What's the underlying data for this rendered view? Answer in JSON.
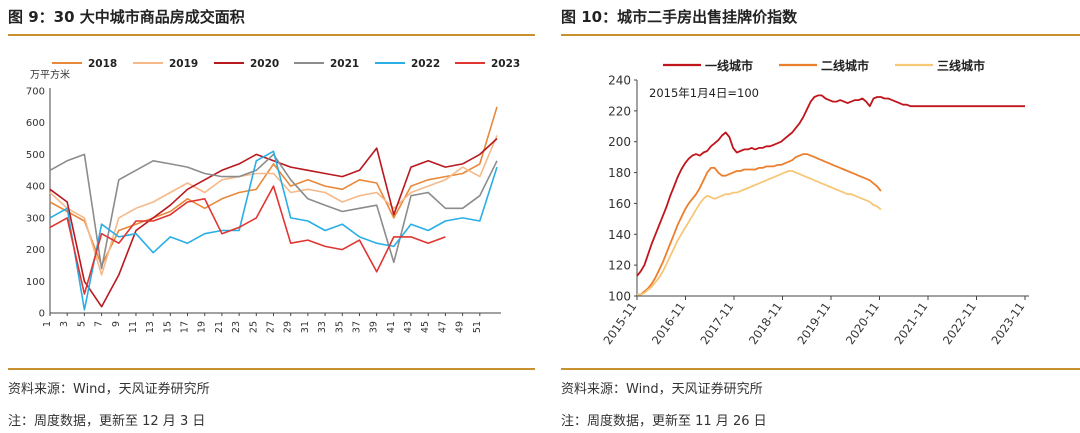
{
  "left": {
    "title": "图 9：30 大中城市商品房成交面积",
    "source": "资料来源：Wind，天风证券研究所",
    "note": "注：周度数据，更新至 12 月 3 日"
  },
  "right": {
    "title": "图 10：城市二手房出售挂牌价指数",
    "source": "资料来源：Wind，天风证券研究所",
    "note": "注：周度数据，更新至 11 月 26 日"
  },
  "chart_data": [
    {
      "type": "line",
      "ylabel": "万平方米",
      "ylim": [
        0,
        700
      ],
      "yticks": [
        0,
        100,
        200,
        300,
        400,
        500,
        600,
        700
      ],
      "xlim": [
        1,
        53
      ],
      "xticks": [
        1,
        3,
        5,
        7,
        9,
        11,
        13,
        15,
        17,
        19,
        21,
        23,
        25,
        27,
        29,
        31,
        33,
        35,
        37,
        39,
        41,
        43,
        45,
        47,
        49,
        51
      ],
      "legend_position": "top",
      "series": [
        {
          "name": "2018",
          "color": "#e8893a",
          "x": [
            1,
            3,
            5,
            7,
            9,
            11,
            13,
            15,
            17,
            19,
            21,
            23,
            25,
            27,
            29,
            31,
            33,
            35,
            37,
            39,
            41,
            43,
            45,
            47,
            49,
            51,
            53
          ],
          "values": [
            350,
            320,
            290,
            150,
            260,
            280,
            300,
            320,
            360,
            330,
            360,
            380,
            390,
            470,
            400,
            420,
            400,
            390,
            420,
            410,
            300,
            400,
            420,
            430,
            440,
            470,
            650
          ]
        },
        {
          "name": "2019",
          "color": "#f5b98a",
          "x": [
            1,
            3,
            5,
            7,
            9,
            11,
            13,
            15,
            17,
            19,
            21,
            23,
            25,
            27,
            29,
            31,
            33,
            35,
            37,
            39,
            41,
            43,
            45,
            47,
            49,
            51,
            53
          ],
          "values": [
            380,
            330,
            300,
            120,
            300,
            330,
            350,
            380,
            410,
            380,
            420,
            430,
            440,
            440,
            380,
            390,
            380,
            350,
            370,
            380,
            330,
            380,
            400,
            420,
            460,
            430,
            560
          ]
        },
        {
          "name": "2020",
          "color": "#b8181e",
          "x": [
            1,
            3,
            5,
            7,
            9,
            11,
            13,
            15,
            17,
            19,
            21,
            23,
            25,
            27,
            29,
            31,
            33,
            35,
            37,
            39,
            41,
            43,
            45,
            47,
            49,
            51,
            53
          ],
          "values": [
            390,
            350,
            100,
            20,
            120,
            260,
            300,
            340,
            390,
            420,
            450,
            470,
            500,
            480,
            460,
            450,
            440,
            430,
            450,
            520,
            310,
            460,
            480,
            460,
            470,
            500,
            550
          ]
        },
        {
          "name": "2021",
          "color": "#8c8c8c",
          "x": [
            1,
            3,
            5,
            7,
            9,
            11,
            13,
            15,
            17,
            19,
            21,
            23,
            25,
            27,
            29,
            31,
            33,
            35,
            37,
            39,
            41,
            43,
            45,
            47,
            49,
            51,
            53
          ],
          "values": [
            450,
            480,
            500,
            140,
            420,
            450,
            480,
            470,
            460,
            440,
            430,
            430,
            450,
            500,
            420,
            360,
            340,
            320,
            330,
            340,
            160,
            370,
            380,
            330,
            330,
            370,
            480
          ]
        },
        {
          "name": "2022",
          "color": "#2aaee6",
          "x": [
            1,
            3,
            5,
            7,
            9,
            11,
            13,
            15,
            17,
            19,
            21,
            23,
            25,
            27,
            29,
            31,
            33,
            35,
            37,
            39,
            41,
            43,
            45,
            47,
            49,
            51,
            53
          ],
          "values": [
            300,
            330,
            10,
            280,
            240,
            250,
            190,
            240,
            220,
            250,
            260,
            260,
            480,
            510,
            300,
            290,
            260,
            280,
            240,
            220,
            210,
            280,
            260,
            290,
            300,
            290,
            460
          ]
        },
        {
          "name": "2023",
          "color": "#e03531",
          "x": [
            1,
            3,
            5,
            7,
            9,
            11,
            13,
            15,
            17,
            19,
            21,
            23,
            25,
            27,
            29,
            31,
            33,
            35,
            37,
            39,
            41,
            43,
            45,
            47
          ],
          "values": [
            270,
            300,
            60,
            250,
            220,
            290,
            290,
            310,
            350,
            360,
            250,
            270,
            300,
            400,
            220,
            230,
            210,
            200,
            230,
            130,
            240,
            240,
            220,
            240
          ]
        }
      ]
    },
    {
      "type": "line",
      "annotation": "2015年1月4日=100",
      "ylim": [
        100,
        240
      ],
      "yticks": [
        100,
        120,
        140,
        160,
        180,
        200,
        220,
        240
      ],
      "xticks": [
        "2015-11",
        "2016-11",
        "2017-11",
        "2018-11",
        "2019-11",
        "2020-11",
        "2021-11",
        "2022-11",
        "2023-11"
      ],
      "legend_position": "top",
      "series": [
        {
          "name": "一线城市",
          "color": "#c0151b",
          "x": [
            0,
            1,
            2,
            3,
            4,
            5,
            6,
            7,
            8,
            9,
            10,
            11,
            12,
            13,
            14,
            15,
            16,
            17,
            18,
            19,
            20,
            21,
            22,
            23,
            24,
            25,
            26,
            27,
            28,
            29,
            30,
            31,
            32,
            33,
            34,
            35,
            36,
            37,
            38,
            39,
            40,
            41,
            42,
            43,
            44,
            45,
            46,
            47,
            48,
            49,
            50,
            51,
            52,
            53,
            54,
            55,
            56,
            57,
            58,
            59,
            60,
            61,
            62,
            63,
            64,
            65,
            66,
            67,
            68,
            69,
            70,
            71,
            72,
            73,
            74,
            75,
            76,
            77,
            78,
            79,
            80,
            81,
            82,
            83,
            84,
            85,
            86,
            87,
            88,
            89,
            90,
            91,
            92,
            93,
            94,
            95,
            96,
            97,
            98,
            99,
            100,
            101,
            102,
            103,
            104,
            105
          ],
          "values": [
            113,
            116,
            120,
            127,
            134,
            140,
            146,
            152,
            158,
            165,
            171,
            177,
            182,
            186,
            189,
            191,
            192,
            191,
            193,
            194,
            197,
            199,
            201,
            204,
            206,
            203,
            196,
            193,
            194,
            195,
            195,
            196,
            195,
            196,
            196,
            197,
            197,
            198,
            199,
            200,
            202,
            204,
            206,
            209,
            212,
            216,
            221,
            226,
            229,
            230,
            230,
            228,
            227,
            226,
            226,
            227,
            226,
            225,
            226,
            227,
            227,
            228,
            226,
            223,
            228,
            229,
            229,
            228,
            228,
            227,
            226,
            225,
            224,
            224,
            223,
            223,
            223,
            223,
            223,
            223,
            223,
            223,
            223,
            223,
            223,
            223,
            223,
            223,
            223,
            223,
            223,
            223,
            223,
            223,
            223,
            223,
            223,
            223,
            223,
            223,
            223,
            223,
            223,
            223,
            223,
            223
          ]
        },
        {
          "name": "二线城市",
          "color": "#ec7f2d",
          "x": [
            0,
            1,
            2,
            3,
            4,
            5,
            6,
            7,
            8,
            9,
            10,
            11,
            12,
            13,
            14,
            15,
            16,
            17,
            18,
            19,
            20,
            21,
            22,
            23,
            24,
            25,
            26,
            27,
            28,
            29,
            30,
            31,
            32,
            33,
            34,
            35,
            36,
            37,
            38,
            39,
            40,
            41,
            42,
            43,
            44,
            45,
            46,
            47,
            48,
            49,
            50,
            51,
            52,
            53,
            54,
            55,
            56,
            57,
            58,
            59,
            60,
            61,
            62,
            63,
            64,
            65,
            66
          ],
          "values": [
            101,
            101,
            103,
            105,
            108,
            112,
            117,
            122,
            128,
            134,
            140,
            146,
            151,
            156,
            160,
            163,
            166,
            170,
            175,
            180,
            183,
            183,
            180,
            178,
            178,
            179,
            180,
            181,
            181,
            182,
            182,
            182,
            182,
            183,
            183,
            184,
            184,
            184,
            185,
            185,
            186,
            187,
            188,
            190,
            191,
            192,
            192,
            191,
            190,
            189,
            188,
            187,
            186,
            185,
            184,
            183,
            182,
            181,
            180,
            179,
            178,
            177,
            176,
            175,
            173,
            171,
            168
          ]
        },
        {
          "name": "三线城市",
          "color": "#f7c777",
          "x": [
            0,
            1,
            2,
            3,
            4,
            5,
            6,
            7,
            8,
            9,
            10,
            11,
            12,
            13,
            14,
            15,
            16,
            17,
            18,
            19,
            20,
            21,
            22,
            23,
            24,
            25,
            26,
            27,
            28,
            29,
            30,
            31,
            32,
            33,
            34,
            35,
            36,
            37,
            38,
            39,
            40,
            41,
            42,
            43,
            44,
            45,
            46,
            47,
            48,
            49,
            50,
            51,
            52,
            53,
            54,
            55,
            56,
            57,
            58,
            59,
            60,
            61,
            62,
            63,
            64,
            65,
            66
          ],
          "values": [
            101,
            101,
            102,
            104,
            106,
            109,
            112,
            116,
            121,
            126,
            131,
            136,
            140,
            144,
            148,
            152,
            156,
            160,
            163,
            165,
            164,
            163,
            164,
            165,
            166,
            166,
            167,
            167,
            168,
            169,
            170,
            171,
            172,
            173,
            174,
            175,
            176,
            177,
            178,
            179,
            180,
            181,
            181,
            180,
            179,
            178,
            177,
            176,
            175,
            174,
            173,
            172,
            171,
            170,
            169,
            168,
            167,
            166,
            166,
            165,
            164,
            163,
            162,
            161,
            159,
            158,
            156
          ]
        }
      ]
    }
  ]
}
